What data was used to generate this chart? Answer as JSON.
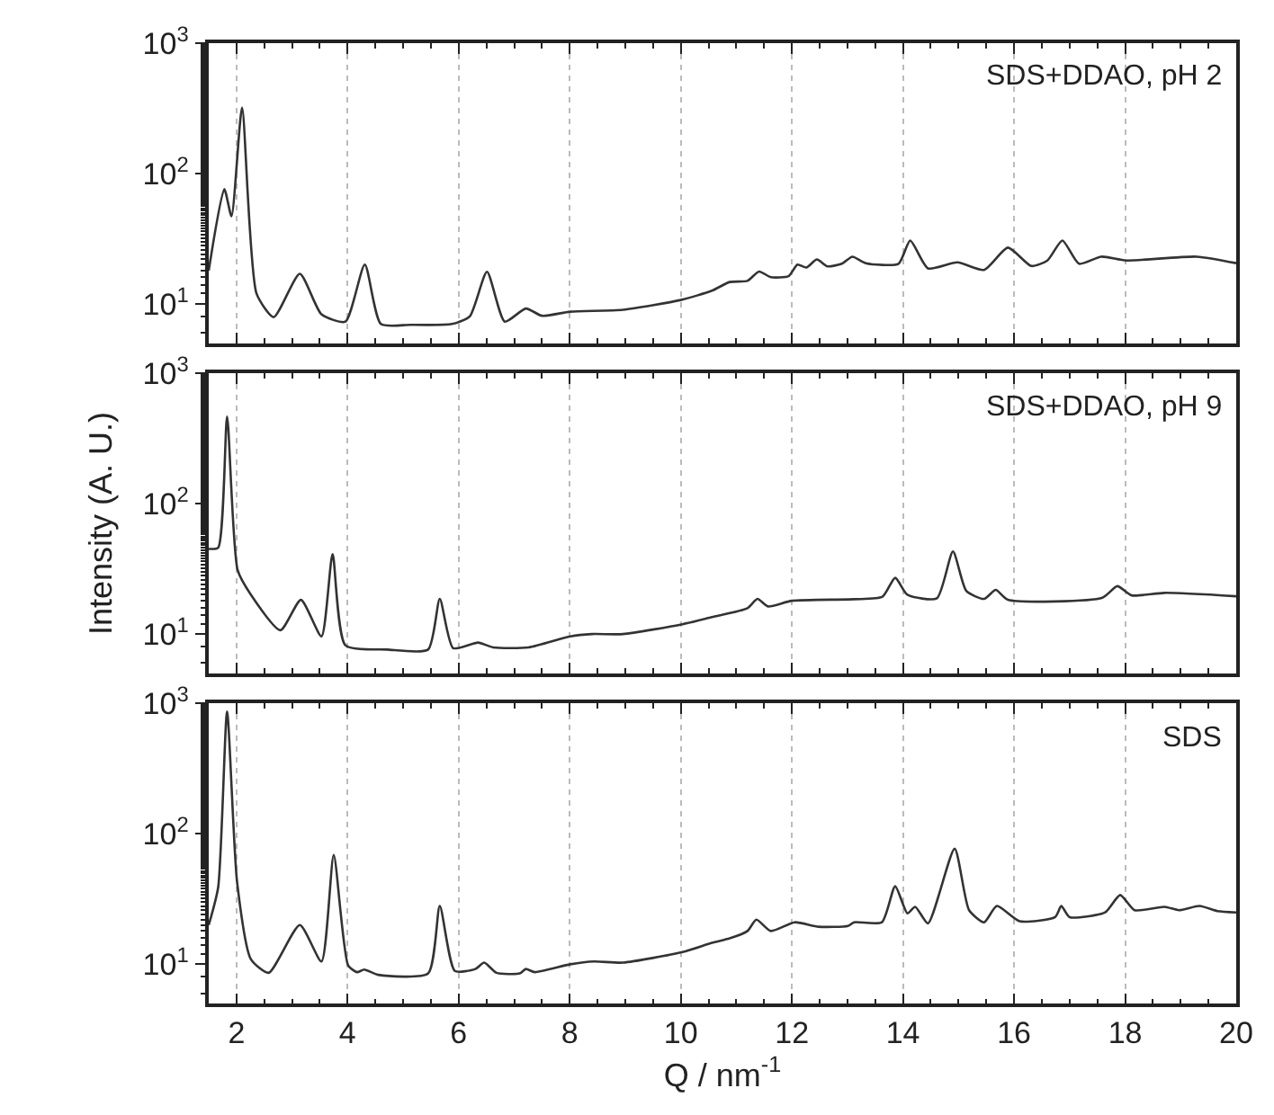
{
  "chart_data": [
    {
      "type": "line",
      "annotations": [
        "SDS+DDAO, pH 2"
      ],
      "xlim": [
        1.5,
        20
      ],
      "xticks": [
        2,
        4,
        6,
        8,
        10,
        12,
        14,
        16,
        18,
        20
      ],
      "ylim": [
        5,
        1000
      ],
      "yticks": [
        {
          "value": 10,
          "label": "10$^{1}$"
        },
        {
          "value": 100,
          "label": "10$^{2}$"
        },
        {
          "value": 1000,
          "label": "10$^{3}$"
        }
      ],
      "log": "y",
      "grid": "x",
      "tick_labels": "y",
      "x": [
        1.5,
        1.78,
        1.91,
        2.1,
        2.36,
        2.67,
        3.14,
        3.53,
        3.96,
        4.31,
        4.6,
        5.13,
        5.88,
        6.2,
        6.51,
        6.83,
        7.21,
        7.5,
        8.01,
        8.96,
        10.0,
        10.56,
        10.88,
        11.2,
        11.41,
        11.62,
        11.94,
        12.1,
        12.26,
        12.45,
        12.64,
        12.9,
        13.09,
        13.33,
        13.92,
        14.13,
        14.45,
        14.98,
        15.46,
        15.89,
        16.31,
        16.6,
        16.87,
        17.17,
        17.57,
        18.02,
        19.29,
        20.0
      ],
      "series": [
        {
          "color": "#333333",
          "values": [
            18,
            76,
            47,
            320,
            12,
            7.9,
            17,
            8.3,
            7.3,
            20,
            7.0,
            6.9,
            7.0,
            8,
            17.6,
            7.3,
            9.2,
            8.1,
            8.7,
            9.0,
            10.7,
            12.6,
            14.7,
            15,
            17.7,
            16,
            16.3,
            20,
            19,
            21.9,
            19.4,
            20.3,
            23,
            20.5,
            20.3,
            30.6,
            18.7,
            20.8,
            18.2,
            27,
            19.5,
            21.5,
            30.6,
            20.3,
            23,
            21.5,
            23,
            20.5
          ]
        }
      ]
    },
    {
      "type": "line",
      "annotations": [
        "SDS+DDAO, pH 9"
      ],
      "ylabel": "Intensity (A. U.)",
      "xlim": [
        1.5,
        20
      ],
      "xticks": [
        2,
        4,
        6,
        8,
        10,
        12,
        14,
        16,
        18,
        20
      ],
      "ylim": [
        5,
        1000
      ],
      "yticks": [
        {
          "value": 10,
          "label": "10$^{1}$"
        },
        {
          "value": 100,
          "label": "10$^{2}$"
        },
        {
          "value": 1000,
          "label": "10$^{3}$"
        }
      ],
      "log": "y",
      "grid": "x",
      "tick_labels": "y",
      "x": [
        1.5,
        1.67,
        1.83,
        2.02,
        2.26,
        2.79,
        3.16,
        3.53,
        3.73,
        3.96,
        4.71,
        5.45,
        5.66,
        5.9,
        6.35,
        6.62,
        7.26,
        8.01,
        8.4,
        8.96,
        10.03,
        10.56,
        11.2,
        11.38,
        11.57,
        12.0,
        13.12,
        13.63,
        13.86,
        14.08,
        14.61,
        14.9,
        15.14,
        15.46,
        15.67,
        15.89,
        17.59,
        17.86,
        18.12,
        18.71,
        20.0
      ],
      "series": [
        {
          "color": "#333333",
          "values": [
            45,
            46,
            466,
            31,
            20,
            10.7,
            18.3,
            9.6,
            41,
            8.2,
            7.6,
            7.6,
            18.6,
            7.8,
            8.6,
            7.9,
            7.9,
            9.6,
            10.0,
            10,
            11.9,
            13.5,
            15.8,
            18.6,
            16.3,
            18,
            18.5,
            19.3,
            27,
            20,
            18.8,
            43,
            21.4,
            18.6,
            21.8,
            18.3,
            19,
            23.3,
            19.8,
            20.7,
            19.5
          ]
        }
      ]
    },
    {
      "type": "line",
      "annotations": [
        "SDS"
      ],
      "xlabel": "Q / nm$^{-1}$",
      "xlim": [
        1.5,
        20
      ],
      "xticks": [
        2,
        4,
        6,
        8,
        10,
        12,
        14,
        16,
        18,
        20
      ],
      "ylim": [
        5,
        1000
      ],
      "yticks": [
        {
          "value": 10,
          "label": "10$^{1}$"
        },
        {
          "value": 100,
          "label": "10$^{2}$"
        },
        {
          "value": 1000,
          "label": "10$^{3}$"
        }
      ],
      "log": "y",
      "grid": "x",
      "x": [
        1.5,
        1.67,
        1.83,
        2.01,
        2.26,
        2.58,
        3.14,
        3.53,
        3.75,
        4.01,
        4.17,
        4.3,
        4.55,
        5.45,
        5.66,
        5.93,
        6.3,
        6.46,
        6.68,
        7.1,
        7.21,
        7.37,
        8.01,
        8.44,
        8.96,
        10.03,
        10.56,
        10.88,
        11.2,
        11.36,
        11.62,
        12.05,
        12.48,
        13.01,
        13.12,
        13.62,
        13.86,
        14.08,
        14.22,
        14.45,
        14.93,
        15.19,
        15.46,
        15.69,
        16.1,
        16.74,
        16.85,
        17.0,
        17.64,
        17.91,
        18.17,
        18.71,
        18.97,
        19.34,
        19.66,
        20.0
      ],
      "series": [
        {
          "color": "#333333",
          "values": [
            20,
            39,
            870,
            43,
            10.9,
            8.6,
            20,
            10.5,
            69,
            9.8,
            8.7,
            9.1,
            8.3,
            8.5,
            28,
            8.9,
            9.2,
            10.3,
            8.6,
            8.5,
            9.2,
            8.7,
            10,
            10.5,
            10.3,
            12.4,
            14.6,
            15.8,
            18,
            22,
            18,
            21,
            19.4,
            19.7,
            21,
            21,
            39.7,
            24.6,
            27.6,
            20.6,
            77,
            26,
            21,
            28,
            21.4,
            23,
            28,
            23,
            25,
            34,
            26,
            27.6,
            26,
            28,
            25.6,
            25
          ]
        }
      ]
    }
  ]
}
